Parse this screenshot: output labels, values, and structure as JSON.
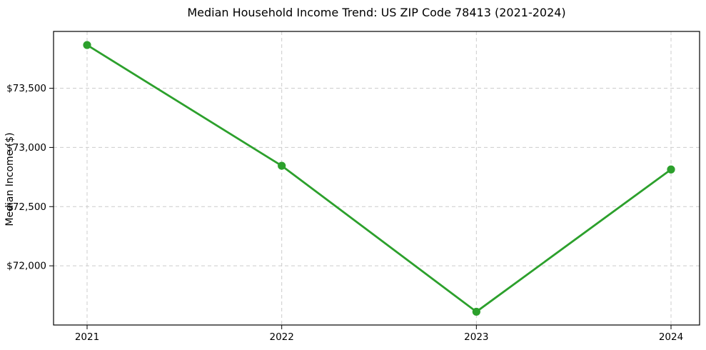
{
  "chart_data": {
    "type": "line",
    "title": "Median Household Income Trend: US ZIP Code 78413 (2021-2024)",
    "xlabel": "",
    "ylabel": "Median Income ($)",
    "categories": [
      "2021",
      "2022",
      "2023",
      "2024"
    ],
    "series": [
      {
        "name": "Median Household Income",
        "values": [
          73865,
          72845,
          71612,
          72814
        ]
      }
    ],
    "yticks": [
      72000,
      72500,
      73000,
      73500
    ],
    "ytick_labels": [
      "$72,000",
      "$72,500",
      "$73,000",
      "$73,500"
    ],
    "ylim": [
      71500,
      73980
    ],
    "grid": true,
    "grid_style": "dashed",
    "legend_position": "none",
    "colors": {
      "line": "#2ca02c",
      "marker": "#2ca02c",
      "grid": "#cccccc",
      "spine": "#000000",
      "text": "#000000",
      "background": "#ffffff"
    }
  }
}
